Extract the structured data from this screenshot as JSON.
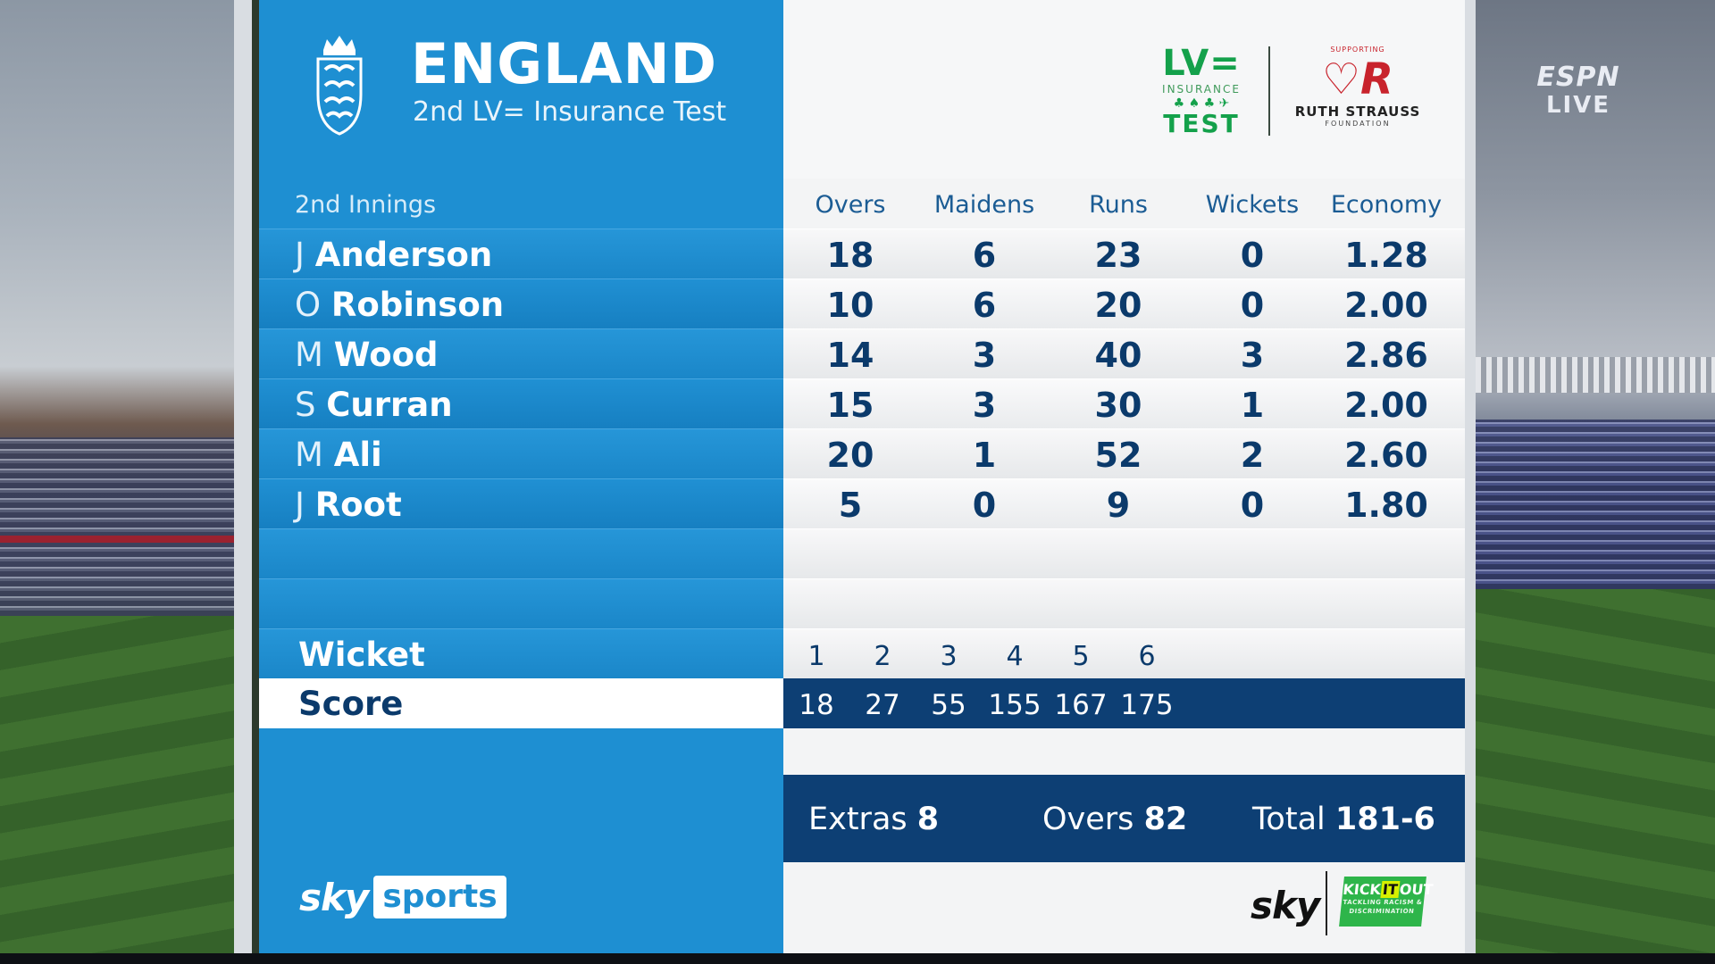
{
  "header": {
    "team": "ENGLAND",
    "match": "2nd LV= Insurance Test"
  },
  "sponsors": {
    "lv_top": "LV=",
    "lv_insurance": "INSURANCE",
    "lv_test": "TEST",
    "rs_supporting": "SUPPORTING",
    "rs_mark": "♡R",
    "rs_name": "RUTH STRAUSS",
    "rs_foundation": "FOUNDATION"
  },
  "broadcaster_bug": {
    "line1": "ESPN",
    "line2": "LIVE"
  },
  "table": {
    "innings_label": "2nd Innings",
    "columns": [
      "Overs",
      "Maidens",
      "Runs",
      "Wickets",
      "Economy"
    ],
    "bowlers": [
      {
        "initial": "J",
        "surname": "Anderson",
        "overs": "18",
        "maidens": "6",
        "runs": "23",
        "wickets": "0",
        "economy": "1.28"
      },
      {
        "initial": "O",
        "surname": "Robinson",
        "overs": "10",
        "maidens": "6",
        "runs": "20",
        "wickets": "0",
        "economy": "2.00"
      },
      {
        "initial": "M",
        "surname": "Wood",
        "overs": "14",
        "maidens": "3",
        "runs": "40",
        "wickets": "3",
        "economy": "2.86"
      },
      {
        "initial": "S",
        "surname": "Curran",
        "overs": "15",
        "maidens": "3",
        "runs": "30",
        "wickets": "1",
        "economy": "2.00"
      },
      {
        "initial": "M",
        "surname": "Ali",
        "overs": "20",
        "maidens": "1",
        "runs": "52",
        "wickets": "2",
        "economy": "2.60"
      },
      {
        "initial": "J",
        "surname": "Root",
        "overs": "5",
        "maidens": "0",
        "runs": "9",
        "wickets": "0",
        "economy": "1.80"
      }
    ]
  },
  "fall_of_wickets": {
    "wicket_label": "Wicket",
    "score_label": "Score",
    "wickets": [
      "1",
      "2",
      "3",
      "4",
      "5",
      "6"
    ],
    "scores": [
      "18",
      "27",
      "55",
      "155",
      "167",
      "175"
    ]
  },
  "totals": {
    "extras_label": "Extras",
    "extras_value": "8",
    "overs_label": "Overs",
    "overs_value": "82",
    "total_label": "Total",
    "total_value": "181-6"
  },
  "footer": {
    "sky": "sky",
    "sports": "sports",
    "sky_small": "sky",
    "kio_text": "KICK IT OUT",
    "kio_kick": "KICK",
    "kio_it": "IT",
    "kio_out": "OUT",
    "kio_tag": "TACKLING RACISM & DISCRIMINATION"
  },
  "colors": {
    "panel_blue": "#1e8fd2",
    "navy": "#0d3f74",
    "text_navy": "#0b3a6b",
    "panel_white": "#f3f4f5",
    "lv_green": "#14a14b",
    "rs_red": "#c8232c",
    "kio_green": "#2eb54a"
  }
}
